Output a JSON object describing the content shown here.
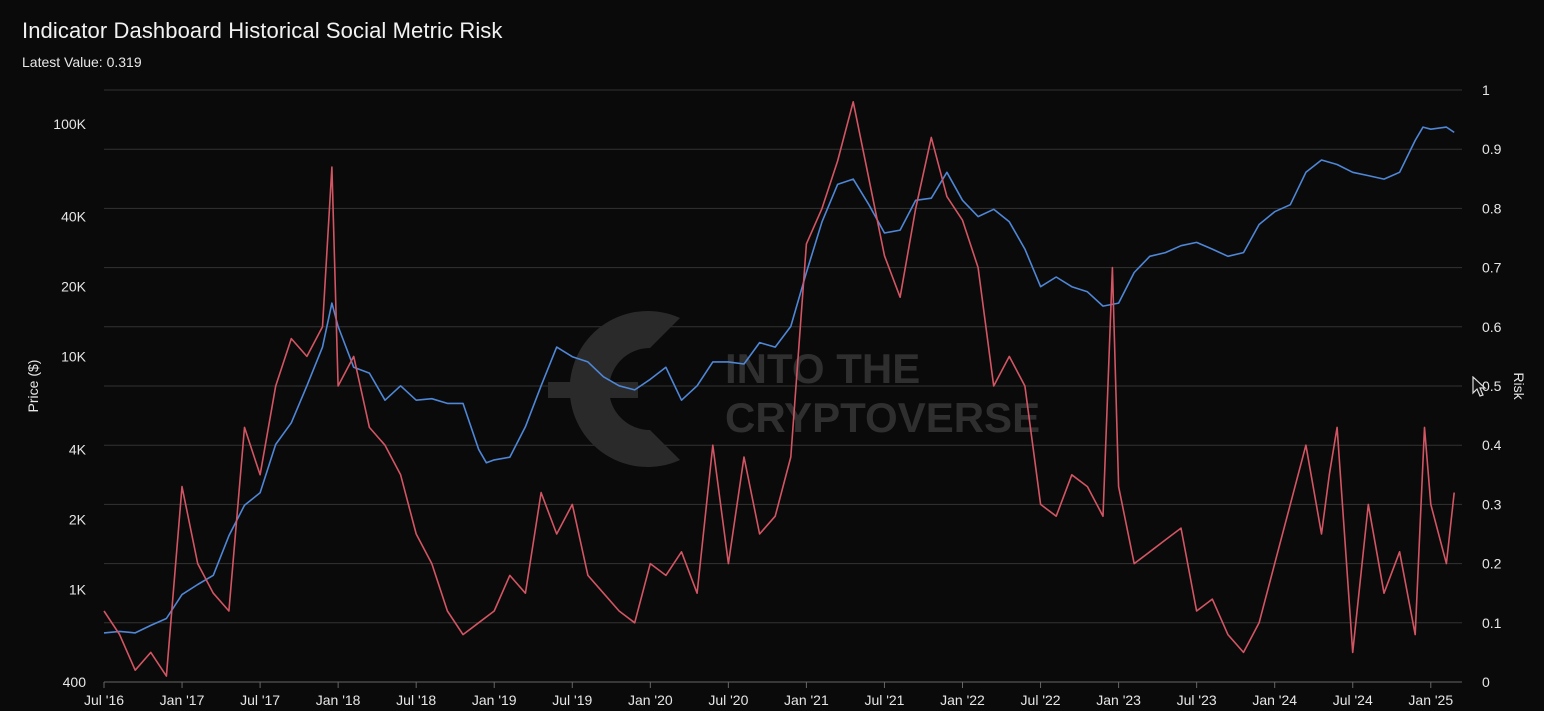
{
  "header": {
    "title": "Indicator Dashboard Historical Social Metric Risk",
    "latest_label": "Latest Value:",
    "latest_value": "0.319"
  },
  "watermark": {
    "line1": "INTO THE",
    "line2": "CRYPTOVERSE"
  },
  "colors": {
    "background": "#0a0a0a",
    "grid": "#333333",
    "price": "#4f86d6",
    "risk": "#d25563",
    "axis_text": "#e6e6e6",
    "watermark": "#3a3a3a"
  },
  "chart_data": {
    "type": "line",
    "x_ticks": [
      "Jul '16",
      "Jan '17",
      "Jul '17",
      "Jan '18",
      "Jul '18",
      "Jan '19",
      "Jul '19",
      "Jan '20",
      "Jul '20",
      "Jan '21",
      "Jul '21",
      "Jan '22",
      "Jul '22",
      "Jan '23",
      "Jul '23",
      "Jan '24",
      "Jul '24",
      "Jan '25"
    ],
    "x_range": [
      2016.5,
      2025.2
    ],
    "y_left": {
      "label": "Price ($)",
      "scale": "log",
      "range": [
        400,
        140000
      ],
      "ticks": [
        400,
        1000,
        2000,
        4000,
        10000,
        20000,
        40000,
        100000
      ],
      "tick_labels": [
        "400",
        "1K",
        "2K",
        "4K",
        "10K",
        "20K",
        "40K",
        "100K"
      ]
    },
    "y_right": {
      "label": "Risk",
      "range": [
        0,
        1
      ],
      "ticks": [
        0,
        0.1,
        0.2,
        0.3,
        0.4,
        0.5,
        0.6,
        0.7,
        0.8,
        0.9,
        1
      ],
      "tick_labels": [
        "0",
        "0.1",
        "0.2",
        "0.3",
        "0.4",
        "0.5",
        "0.6",
        "0.7",
        "0.8",
        "0.9",
        "1"
      ]
    },
    "grid": true,
    "series": [
      {
        "axis": "left",
        "color": "#4f86d6",
        "x": [
          2016.5,
          2016.6,
          2016.7,
          2016.8,
          2016.9,
          2017.0,
          2017.1,
          2017.2,
          2017.3,
          2017.4,
          2017.5,
          2017.6,
          2017.7,
          2017.8,
          2017.9,
          2017.96,
          2018.0,
          2018.1,
          2018.2,
          2018.3,
          2018.4,
          2018.5,
          2018.6,
          2018.7,
          2018.8,
          2018.9,
          2018.95,
          2019.0,
          2019.1,
          2019.2,
          2019.3,
          2019.4,
          2019.5,
          2019.6,
          2019.7,
          2019.8,
          2019.9,
          2020.0,
          2020.1,
          2020.2,
          2020.3,
          2020.4,
          2020.5,
          2020.6,
          2020.7,
          2020.8,
          2020.9,
          2021.0,
          2021.1,
          2021.2,
          2021.3,
          2021.4,
          2021.5,
          2021.6,
          2021.7,
          2021.8,
          2021.9,
          2022.0,
          2022.1,
          2022.2,
          2022.3,
          2022.4,
          2022.5,
          2022.6,
          2022.7,
          2022.8,
          2022.9,
          2023.0,
          2023.1,
          2023.2,
          2023.3,
          2023.4,
          2023.5,
          2023.6,
          2023.7,
          2023.8,
          2023.9,
          2024.0,
          2024.1,
          2024.2,
          2024.3,
          2024.4,
          2024.5,
          2024.6,
          2024.7,
          2024.8,
          2024.9,
          2024.95,
          2025.0,
          2025.1,
          2025.15
        ],
        "y": [
          650,
          660,
          650,
          700,
          750,
          950,
          1050,
          1150,
          1700,
          2300,
          2600,
          4200,
          5200,
          7500,
          11000,
          17000,
          13500,
          9000,
          8500,
          6500,
          7500,
          6500,
          6600,
          6300,
          6300,
          4000,
          3500,
          3600,
          3700,
          5000,
          7500,
          11000,
          10000,
          9500,
          8200,
          7500,
          7200,
          8000,
          9000,
          6500,
          7500,
          9500,
          9500,
          9300,
          11500,
          11000,
          13500,
          23000,
          38000,
          55000,
          58000,
          45000,
          34000,
          35000,
          47000,
          48000,
          62000,
          47000,
          40000,
          43000,
          38000,
          29000,
          20000,
          22000,
          20000,
          19000,
          16500,
          17000,
          23000,
          27000,
          28000,
          30000,
          31000,
          29000,
          27000,
          28000,
          37000,
          42000,
          45000,
          62000,
          70000,
          67000,
          62000,
          60000,
          58000,
          62000,
          85000,
          97000,
          95000,
          97000,
          92000
        ]
      },
      {
        "axis": "right",
        "color": "#d25563",
        "x": [
          2016.5,
          2016.6,
          2016.7,
          2016.8,
          2016.9,
          2017.0,
          2017.1,
          2017.2,
          2017.3,
          2017.4,
          2017.5,
          2017.6,
          2017.7,
          2017.8,
          2017.9,
          2017.96,
          2018.0,
          2018.1,
          2018.2,
          2018.3,
          2018.4,
          2018.5,
          2018.6,
          2018.7,
          2018.8,
          2018.9,
          2019.0,
          2019.1,
          2019.2,
          2019.3,
          2019.4,
          2019.5,
          2019.6,
          2019.7,
          2019.8,
          2019.9,
          2020.0,
          2020.1,
          2020.2,
          2020.3,
          2020.4,
          2020.5,
          2020.6,
          2020.7,
          2020.8,
          2020.9,
          2021.0,
          2021.1,
          2021.2,
          2021.3,
          2021.4,
          2021.5,
          2021.6,
          2021.7,
          2021.8,
          2021.9,
          2022.0,
          2022.1,
          2022.2,
          2022.3,
          2022.4,
          2022.5,
          2022.6,
          2022.7,
          2022.8,
          2022.9,
          2022.96,
          2023.0,
          2023.1,
          2023.2,
          2023.3,
          2023.4,
          2023.5,
          2023.6,
          2023.7,
          2023.8,
          2023.9,
          2024.0,
          2024.1,
          2024.2,
          2024.3,
          2024.35,
          2024.4,
          2024.5,
          2024.6,
          2024.7,
          2024.8,
          2024.9,
          2024.96,
          2025.0,
          2025.1,
          2025.15
        ],
        "y": [
          0.12,
          0.08,
          0.02,
          0.05,
          0.01,
          0.33,
          0.2,
          0.15,
          0.12,
          0.43,
          0.35,
          0.5,
          0.58,
          0.55,
          0.6,
          0.87,
          0.5,
          0.55,
          0.43,
          0.4,
          0.35,
          0.25,
          0.2,
          0.12,
          0.08,
          0.1,
          0.12,
          0.18,
          0.15,
          0.32,
          0.25,
          0.3,
          0.18,
          0.15,
          0.12,
          0.1,
          0.2,
          0.18,
          0.22,
          0.15,
          0.4,
          0.2,
          0.38,
          0.25,
          0.28,
          0.38,
          0.74,
          0.8,
          0.88,
          0.98,
          0.85,
          0.72,
          0.65,
          0.8,
          0.92,
          0.82,
          0.78,
          0.7,
          0.5,
          0.55,
          0.5,
          0.3,
          0.28,
          0.35,
          0.33,
          0.28,
          0.7,
          0.33,
          0.2,
          0.22,
          0.24,
          0.26,
          0.12,
          0.14,
          0.08,
          0.05,
          0.1,
          0.2,
          0.3,
          0.4,
          0.25,
          0.35,
          0.43,
          0.05,
          0.3,
          0.15,
          0.22,
          0.08,
          0.43,
          0.3,
          0.2,
          0.32
        ]
      }
    ]
  }
}
